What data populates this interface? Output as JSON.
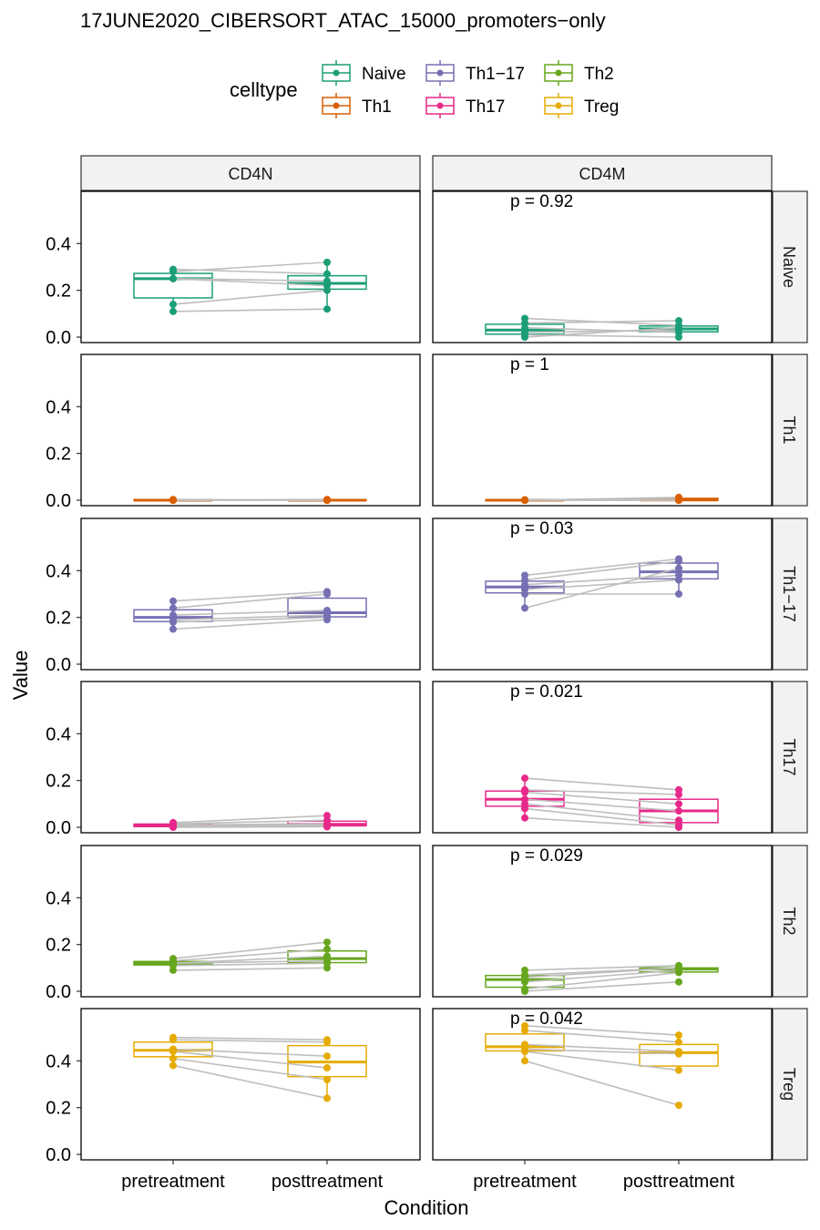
{
  "chart_data": {
    "type": "box",
    "title": "17JUNE2020_CIBERSORT_ATAC_15000_promoters−only",
    "xlabel": "Condition",
    "ylabel": "Value",
    "ylim": [
      0,
      0.6
    ],
    "yticks": [
      "0.0",
      "0.2",
      "0.4"
    ],
    "conditions": [
      "pretreatment",
      "posttreatment"
    ],
    "legend": {
      "title": "celltype",
      "position": "top",
      "items": [
        {
          "label": "Naive",
          "color": "#1B9E77"
        },
        {
          "label": "Th1−17",
          "color": "#7570B3"
        },
        {
          "label": "Th2",
          "color": "#66A61E"
        },
        {
          "label": "Th1",
          "color": "#D95F02"
        },
        {
          "label": "Th17",
          "color": "#E7298A"
        },
        {
          "label": "Treg",
          "color": "#E6AB02"
        }
      ]
    },
    "columns": [
      "CD4N",
      "CD4M"
    ],
    "rows": [
      {
        "celltype": "Naive",
        "color": "#1B9E77",
        "panels": [
          {
            "p": "",
            "pre": [
              0.29,
              0.28,
              0.25,
              0.25,
              0.14,
              0.11
            ],
            "post": [
              0.27,
              0.32,
              0.22,
              0.24,
              0.2,
              0.12
            ]
          },
          {
            "p": "p = 0.92",
            "pre": [
              0.08,
              0.06,
              0.04,
              0.02,
              0.01,
              0.0
            ],
            "post": [
              0.05,
              0.07,
              0.02,
              0.03,
              0.0,
              0.04
            ]
          }
        ]
      },
      {
        "celltype": "Th1",
        "color": "#D95F02",
        "panels": [
          {
            "p": "",
            "pre": [
              0.003,
              0.002,
              0.0,
              0.0,
              0.0,
              0.0
            ],
            "post": [
              0.0,
              0.0,
              0.002,
              0.0,
              0.003,
              0.0
            ]
          },
          {
            "p": "p = 1",
            "pre": [
              0.0,
              0.0,
              0.002,
              0.0,
              0.0,
              0.0
            ],
            "post": [
              0.01,
              0.012,
              0.0,
              0.0,
              0.002,
              0.0
            ]
          }
        ]
      },
      {
        "celltype": "Th1−17",
        "color": "#7570B3",
        "panels": [
          {
            "p": "",
            "pre": [
              0.27,
              0.24,
              0.21,
              0.19,
              0.18,
              0.15
            ],
            "post": [
              0.31,
              0.3,
              0.23,
              0.21,
              0.2,
              0.19
            ]
          },
          {
            "p": "p = 0.03",
            "pre": [
              0.38,
              0.36,
              0.34,
              0.32,
              0.3,
              0.24
            ],
            "post": [
              0.45,
              0.44,
              0.38,
              0.36,
              0.3,
              0.41
            ]
          }
        ]
      },
      {
        "celltype": "Th17",
        "color": "#E7298A",
        "panels": [
          {
            "p": "",
            "pre": [
              0.02,
              0.015,
              0.01,
              0.005,
              0.002,
              0.0
            ],
            "post": [
              0.05,
              0.03,
              0.015,
              0.01,
              0.005,
              0.002
            ]
          },
          {
            "p": "p = 0.021",
            "pre": [
              0.21,
              0.16,
              0.15,
              0.12,
              0.1,
              0.08,
              0.04
            ],
            "post": [
              0.16,
              0.14,
              0.1,
              0.07,
              0.03,
              0.01,
              0.0
            ]
          }
        ]
      },
      {
        "celltype": "Th2",
        "color": "#66A61E",
        "panels": [
          {
            "p": "",
            "pre": [
              0.14,
              0.13,
              0.12,
              0.12,
              0.11,
              0.09
            ],
            "post": [
              0.21,
              0.18,
              0.15,
              0.13,
              0.12,
              0.1
            ]
          },
          {
            "p": "p = 0.029",
            "pre": [
              0.09,
              0.07,
              0.06,
              0.04,
              0.01,
              0.0
            ],
            "post": [
              0.11,
              0.1,
              0.1,
              0.09,
              0.08,
              0.04
            ]
          }
        ]
      },
      {
        "celltype": "Treg",
        "color": "#E6AB02",
        "panels": [
          {
            "p": "",
            "pre": [
              0.5,
              0.49,
              0.45,
              0.44,
              0.41,
              0.38
            ],
            "post": [
              0.49,
              0.48,
              0.42,
              0.37,
              0.32,
              0.24
            ]
          },
          {
            "p": "p = 0.042",
            "pre": [
              0.55,
              0.53,
              0.47,
              0.45,
              0.44,
              0.4
            ],
            "post": [
              0.51,
              0.48,
              0.44,
              0.43,
              0.36,
              0.21
            ]
          }
        ]
      }
    ]
  }
}
